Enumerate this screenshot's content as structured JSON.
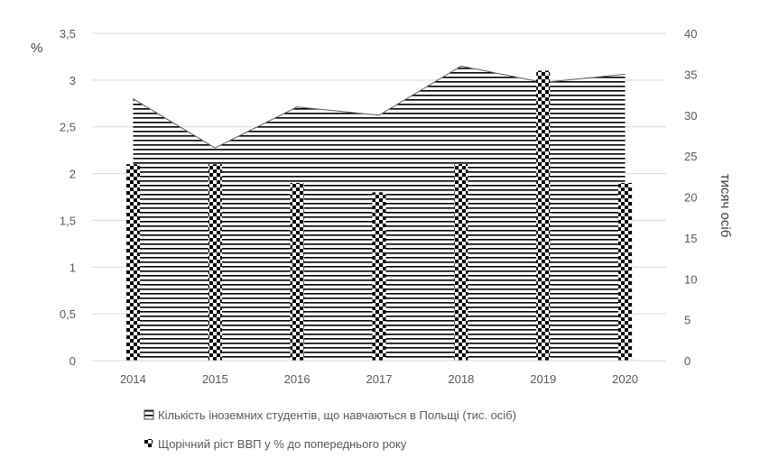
{
  "chart_data": {
    "type": "bar",
    "categories": [
      "2014",
      "2015",
      "2016",
      "2017",
      "2018",
      "2019",
      "2020"
    ],
    "series": [
      {
        "name": "Кількість іноземних студентів, що навчаються в Польщі (тис. осіб)",
        "kind": "area",
        "axis": "right",
        "values": [
          32,
          26,
          31,
          30,
          36,
          34,
          35
        ]
      },
      {
        "name": "Щорічний ріст ВВП у % до попереднього року",
        "kind": "bar",
        "axis": "left",
        "values": [
          2.1,
          2.1,
          1.9,
          1.8,
          2.1,
          3.1,
          1.9
        ]
      }
    ],
    "y_left": {
      "label": "%",
      "ylim": [
        0,
        3.5
      ],
      "ticks": [
        "0",
        "0,5",
        "1",
        "1,5",
        "2",
        "2,5",
        "3",
        "3,5"
      ]
    },
    "y_right": {
      "label": "тисяч осіб",
      "ylim": [
        0,
        40
      ],
      "ticks": [
        "0",
        "5",
        "10",
        "15",
        "20",
        "25",
        "30",
        "35",
        "40"
      ]
    },
    "grid": true,
    "legend_position": "bottom"
  }
}
